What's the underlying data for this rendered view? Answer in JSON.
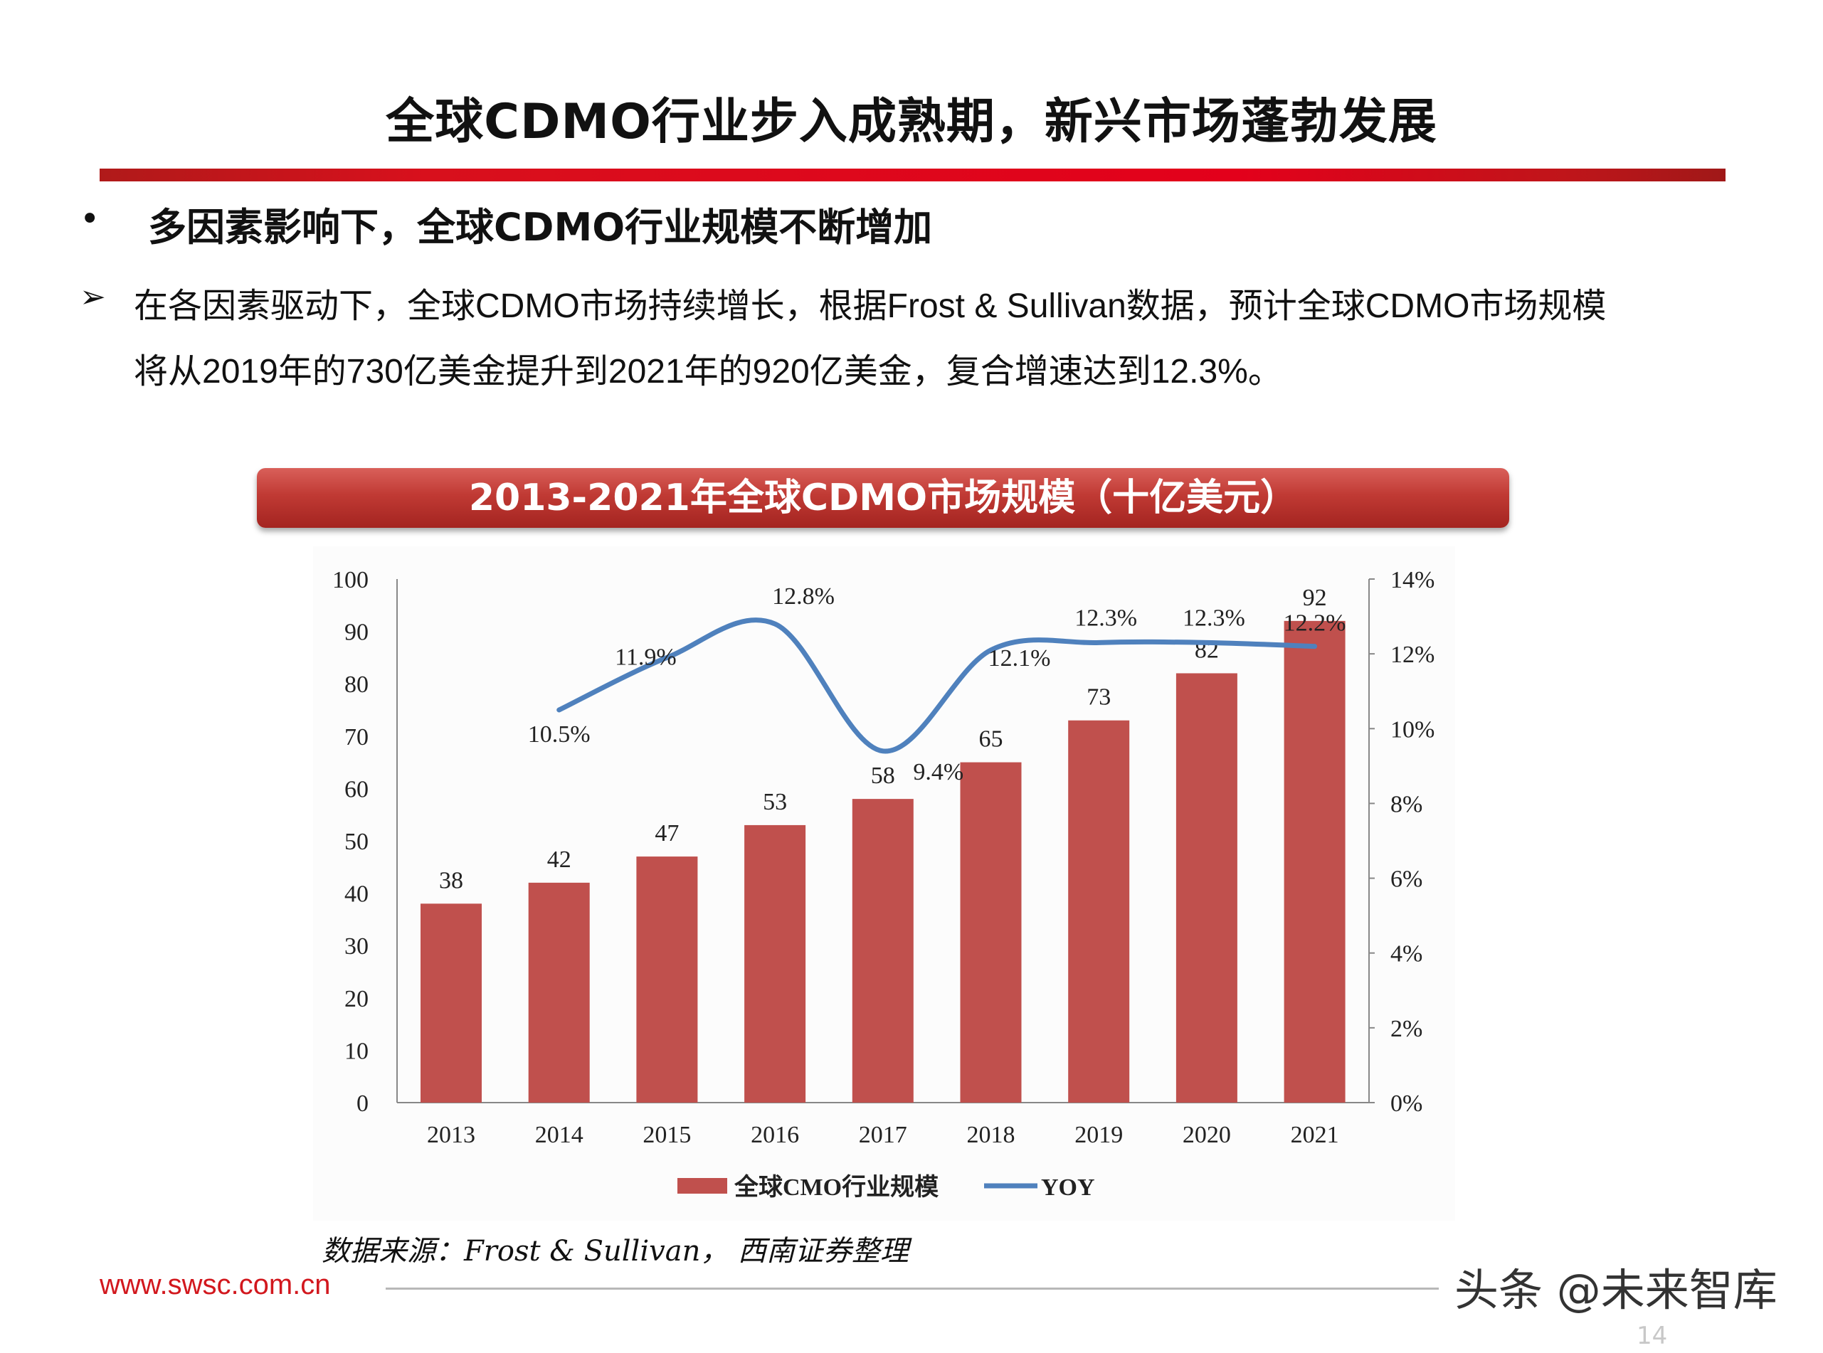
{
  "header": {
    "title": "全球CDMO行业步入成熟期，新兴市场蓬勃发展"
  },
  "bullet": {
    "marker": "•",
    "text": "多因素影响下，全球CDMO行业规模不断增加"
  },
  "paragraph": {
    "marker": "➢",
    "line1": "在各因素驱动下，全球CDMO市场持续增长，根据Frost & Sullivan数据，预计全球CDMO市场规模",
    "line2": "将从2019年的730亿美金提升到2021年的920亿美金，复合增速达到12.3%。"
  },
  "chart_banner": "2013-2021年全球CDMO市场规模（十亿美元）",
  "chart_data": {
    "type": "bar+line",
    "title": "2013-2021年全球CDMO市场规模（十亿美元）",
    "categories": [
      "2013",
      "2014",
      "2015",
      "2016",
      "2017",
      "2018",
      "2019",
      "2020",
      "2021"
    ],
    "series": [
      {
        "name": "全球CMO行业规模",
        "type": "bar",
        "axis": "left",
        "color": "#c0504d",
        "values": [
          38,
          42,
          47,
          53,
          58,
          65,
          73,
          82,
          92
        ],
        "labels": [
          "38",
          "42",
          "47",
          "53",
          "58",
          "65",
          "73",
          "82",
          "92"
        ]
      },
      {
        "name": "YOY",
        "type": "line",
        "axis": "right",
        "color": "#4f81bd",
        "values": [
          null,
          10.5,
          11.9,
          12.8,
          9.4,
          12.1,
          12.3,
          12.3,
          12.2
        ],
        "labels": [
          "",
          "10.5%",
          "11.9%",
          "12.8%",
          "9.4%",
          "12.1%",
          "12.3%",
          "12.3%",
          "12.2%"
        ]
      }
    ],
    "y_left": {
      "range": [
        0,
        100
      ],
      "ticks": [
        "0",
        "10",
        "20",
        "30",
        "40",
        "50",
        "60",
        "70",
        "80",
        "90",
        "100"
      ]
    },
    "y_right": {
      "range": [
        0,
        14
      ],
      "ticks": [
        "0%",
        "2%",
        "4%",
        "6%",
        "8%",
        "10%",
        "12%",
        "14%"
      ]
    },
    "grid": false,
    "legend_position": "bottom"
  },
  "footer": {
    "source": "数据来源：Frost & Sullivan， 西南证券整理",
    "url": "www.swsc.com.cn",
    "page_number": "14",
    "watermark": "头条 @未来智库"
  }
}
